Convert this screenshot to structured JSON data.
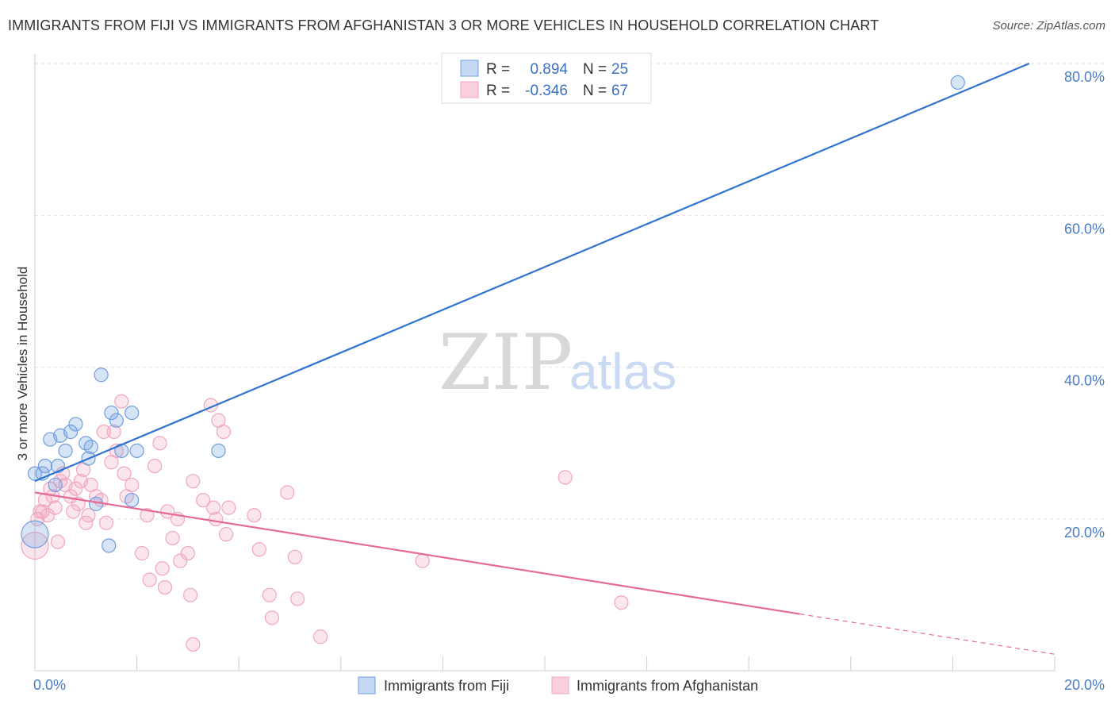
{
  "title": "IMMIGRANTS FROM FIJI VS IMMIGRANTS FROM AFGHANISTAN 3 OR MORE VEHICLES IN HOUSEHOLD CORRELATION CHART",
  "source": "Source: ZipAtlas.com",
  "watermark": {
    "zip": "ZIP",
    "atlas": "atlas"
  },
  "legend_box": {
    "rows": [
      {
        "r_label": "R =",
        "r_value": "0.894",
        "n_label": "N =",
        "n_value": "25"
      },
      {
        "r_label": "R =",
        "r_value": "-0.346",
        "n_label": "N =",
        "n_value": "67"
      }
    ]
  },
  "chart_data": {
    "type": "scatter",
    "title": "IMMIGRANTS FROM FIJI VS IMMIGRANTS FROM AFGHANISTAN 3 OR MORE VEHICLES IN HOUSEHOLD CORRELATION CHART",
    "xlabel": "",
    "ylabel": "3 or more Vehicles in Household",
    "xlim": [
      0,
      20
    ],
    "ylim": [
      0,
      80
    ],
    "x_tick_labels": [
      "0.0%",
      "20.0%"
    ],
    "y_ticks": [
      20,
      40,
      60,
      80
    ],
    "y_tick_labels": [
      "20.0%",
      "40.0%",
      "60.0%",
      "80.0%"
    ],
    "grid": true,
    "legend_position": "bottom",
    "colors": {
      "fiji": "#6f9ee0",
      "fiji_line": "#2f74d0",
      "afghanistan": "#f0a6bf",
      "afghanistan_line": "#e56a98"
    },
    "series": [
      {
        "name": "Immigrants from Fiji",
        "key": "fiji",
        "r": 0.894,
        "n": 25,
        "trend": {
          "x0": 0,
          "y0": 25.0,
          "x1": 19.5,
          "y1": 80.0,
          "x_end": 19.5
        },
        "points": [
          [
            0.0,
            18.0
          ],
          [
            0.15,
            26.0
          ],
          [
            0.2,
            27.0
          ],
          [
            0.3,
            30.5
          ],
          [
            0.4,
            24.5
          ],
          [
            0.45,
            27.0
          ],
          [
            0.5,
            31.0
          ],
          [
            0.6,
            29.0
          ],
          [
            0.7,
            31.5
          ],
          [
            0.8,
            32.5
          ],
          [
            1.0,
            30.0
          ],
          [
            1.05,
            28.0
          ],
          [
            1.1,
            29.5
          ],
          [
            1.3,
            39.0
          ],
          [
            1.5,
            34.0
          ],
          [
            1.6,
            33.0
          ],
          [
            1.7,
            29.0
          ],
          [
            1.9,
            34.0
          ],
          [
            2.0,
            29.0
          ],
          [
            3.6,
            29.0
          ],
          [
            1.2,
            22.0
          ],
          [
            1.9,
            22.5
          ],
          [
            1.45,
            16.5
          ],
          [
            0.0,
            26.0
          ],
          [
            18.1,
            77.5
          ]
        ]
      },
      {
        "name": "Immigrants from Afghanistan",
        "key": "afghanistan",
        "r": -0.346,
        "n": 67,
        "trend": {
          "x0": 0,
          "y0": 23.5,
          "x1": 15.0,
          "y1": 7.5,
          "x_end": 20,
          "y_end": 2.2
        },
        "points": [
          [
            0.0,
            16.5
          ],
          [
            0.05,
            20.0
          ],
          [
            0.1,
            21.0
          ],
          [
            0.2,
            22.5
          ],
          [
            0.25,
            20.5
          ],
          [
            0.35,
            23.0
          ],
          [
            0.4,
            21.5
          ],
          [
            0.45,
            17.0
          ],
          [
            0.5,
            25.0
          ],
          [
            0.55,
            26.0
          ],
          [
            0.6,
            24.5
          ],
          [
            0.7,
            23.0
          ],
          [
            0.75,
            21.0
          ],
          [
            0.8,
            24.0
          ],
          [
            0.85,
            22.0
          ],
          [
            0.9,
            25.0
          ],
          [
            1.0,
            19.5
          ],
          [
            1.05,
            20.5
          ],
          [
            1.1,
            24.5
          ],
          [
            1.2,
            23.0
          ],
          [
            1.3,
            22.5
          ],
          [
            1.35,
            31.5
          ],
          [
            1.4,
            19.5
          ],
          [
            1.5,
            27.5
          ],
          [
            1.55,
            31.5
          ],
          [
            1.6,
            29.0
          ],
          [
            1.7,
            35.5
          ],
          [
            1.75,
            26.0
          ],
          [
            1.8,
            23.0
          ],
          [
            1.9,
            24.5
          ],
          [
            2.1,
            15.5
          ],
          [
            2.2,
            20.5
          ],
          [
            2.25,
            12.0
          ],
          [
            2.35,
            27.0
          ],
          [
            2.45,
            30.0
          ],
          [
            2.5,
            13.5
          ],
          [
            2.55,
            11.0
          ],
          [
            2.6,
            21.0
          ],
          [
            2.7,
            17.5
          ],
          [
            2.8,
            20.0
          ],
          [
            2.85,
            14.5
          ],
          [
            3.0,
            15.5
          ],
          [
            3.05,
            10.0
          ],
          [
            3.1,
            25.0
          ],
          [
            3.3,
            22.5
          ],
          [
            3.45,
            35.0
          ],
          [
            3.5,
            21.5
          ],
          [
            3.55,
            20.0
          ],
          [
            3.6,
            33.0
          ],
          [
            3.7,
            31.5
          ],
          [
            3.75,
            18.0
          ],
          [
            3.8,
            21.5
          ],
          [
            3.1,
            3.5
          ],
          [
            4.3,
            20.5
          ],
          [
            4.4,
            16.0
          ],
          [
            4.6,
            10.0
          ],
          [
            4.65,
            7.0
          ],
          [
            4.95,
            23.5
          ],
          [
            5.1,
            15.0
          ],
          [
            5.15,
            9.5
          ],
          [
            5.6,
            4.5
          ],
          [
            7.6,
            14.5
          ],
          [
            10.4,
            25.5
          ],
          [
            11.5,
            9.0
          ],
          [
            0.15,
            21.0
          ],
          [
            0.3,
            24.0
          ],
          [
            0.95,
            26.5
          ]
        ]
      }
    ]
  },
  "bottom_legend": {
    "items": [
      {
        "label": "Immigrants from Fiji"
      },
      {
        "label": "Immigrants from Afghanistan"
      }
    ]
  }
}
